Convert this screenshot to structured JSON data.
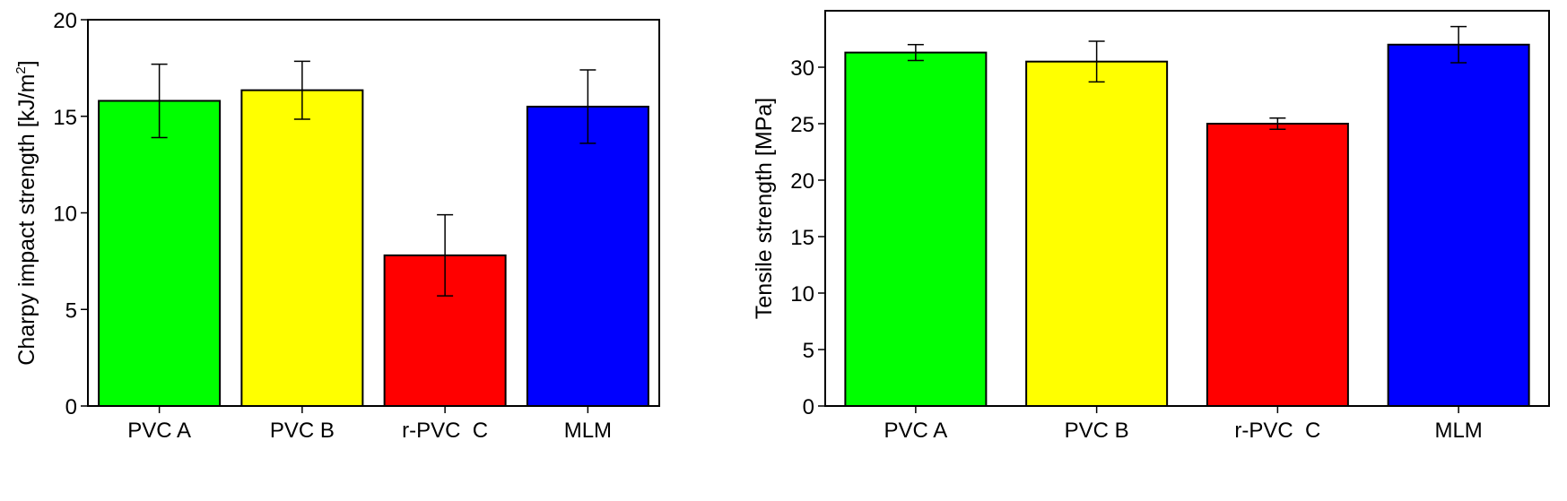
{
  "chart_data": [
    {
      "type": "bar",
      "categories": [
        "PVC A",
        "PVC B",
        "r-PVC  C",
        "MLM"
      ],
      "values": [
        15.8,
        16.35,
        7.8,
        15.5
      ],
      "errors": [
        1.9,
        1.5,
        2.1,
        1.9
      ],
      "colors": [
        "#00ff00",
        "#ffff00",
        "#ff0000",
        "#0000ff"
      ],
      "xlabel": "",
      "ylabel_main": "Charpy impact strength [kJ/m",
      "ylabel_sup": "2",
      "ylabel_tail": "]",
      "ylim": [
        0,
        20
      ],
      "yticks": [
        0,
        5,
        10,
        15,
        20
      ],
      "grid": false
    },
    {
      "type": "bar",
      "categories": [
        "PVC A",
        "PVC B",
        "r-PVC  C",
        "MLM"
      ],
      "values": [
        31.3,
        30.5,
        25.0,
        32.0
      ],
      "errors": [
        0.7,
        1.8,
        0.5,
        1.6
      ],
      "colors": [
        "#00ff00",
        "#ffff00",
        "#ff0000",
        "#0000ff"
      ],
      "xlabel": "",
      "ylabel_main": "Tensile strength [MPa]",
      "ylabel_sup": "",
      "ylabel_tail": "",
      "ylim": [
        0,
        35
      ],
      "yticks": [
        0,
        5,
        10,
        15,
        20,
        25,
        30
      ],
      "grid": false
    }
  ]
}
